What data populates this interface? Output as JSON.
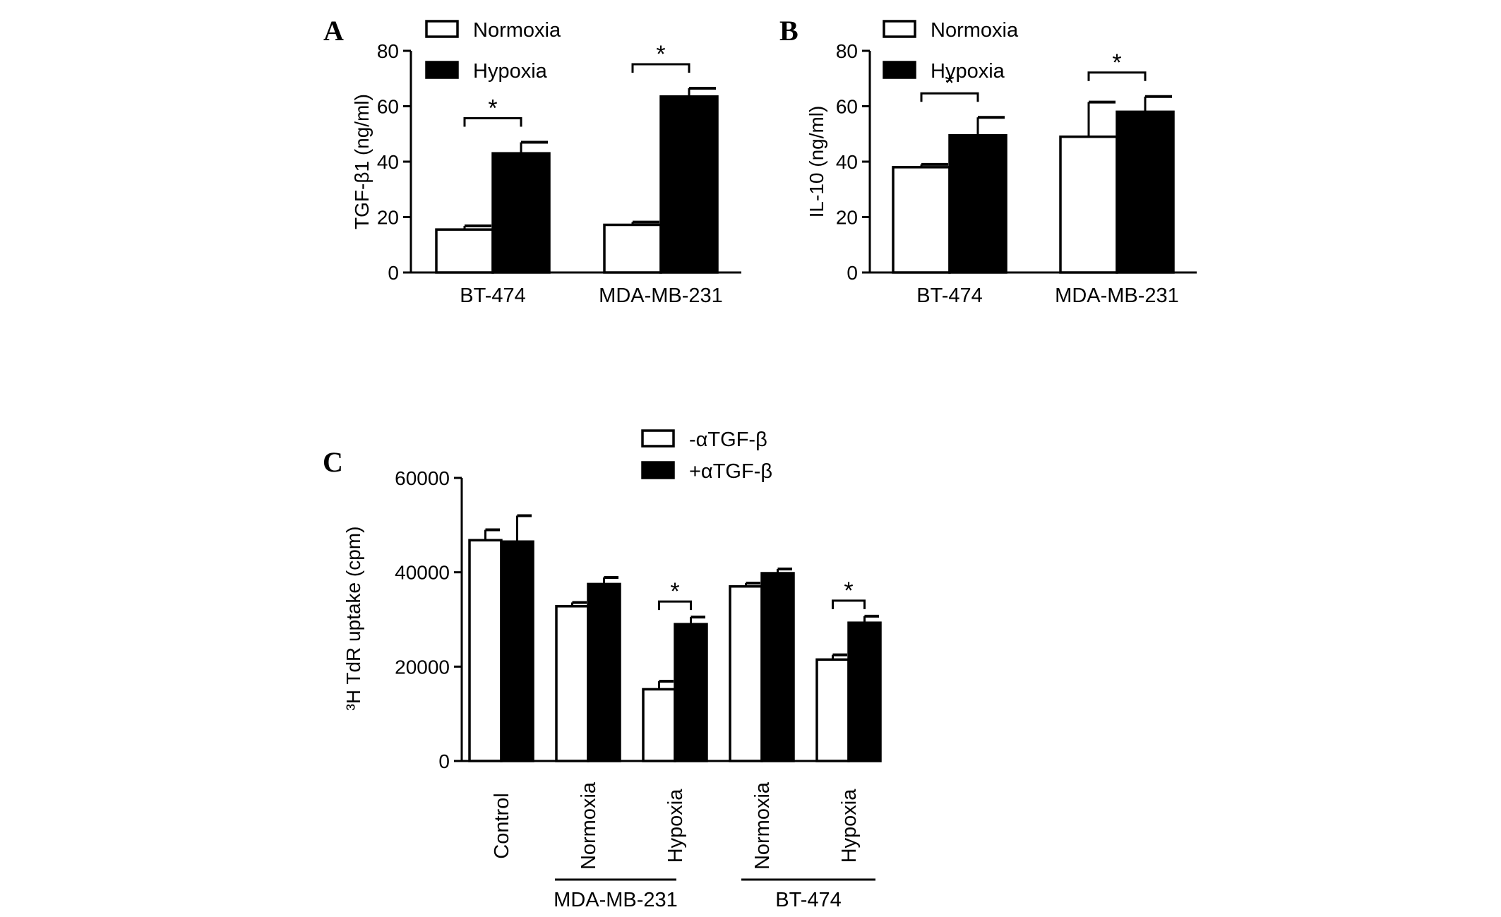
{
  "chart_data": [
    {
      "panel": "A",
      "type": "bar",
      "categories": [
        "BT-474",
        "MDA-MB-231"
      ],
      "series": [
        {
          "name": "Normoxia",
          "values": [
            15.5,
            17.2
          ],
          "errors": [
            1.3,
            1.0
          ],
          "fill": "#ffffff"
        },
        {
          "name": "Hypoxia",
          "values": [
            43.0,
            63.5
          ],
          "errors": [
            4.0,
            3.0
          ],
          "fill": "#000000"
        }
      ],
      "ylabel": "TGF-β1 (ng/ml)",
      "ylim": [
        0,
        80
      ],
      "yticks": [
        0,
        20,
        40,
        60,
        80
      ],
      "significance": [
        "*",
        "*"
      ],
      "legend_position": "top"
    },
    {
      "panel": "B",
      "type": "bar",
      "categories": [
        "BT-474",
        "MDA-MB-231"
      ],
      "series": [
        {
          "name": "Normoxia",
          "values": [
            38.0,
            49.0
          ],
          "errors": [
            1.0,
            12.5
          ],
          "fill": "#ffffff"
        },
        {
          "name": "Hypoxia",
          "values": [
            49.5,
            58.0
          ],
          "errors": [
            6.5,
            5.5
          ],
          "fill": "#000000"
        }
      ],
      "ylabel": "IL-10 (ng/ml)",
      "ylim": [
        0,
        80
      ],
      "yticks": [
        0,
        20,
        40,
        60,
        80
      ],
      "significance": [
        "*",
        "*"
      ],
      "legend_position": "top"
    },
    {
      "panel": "C",
      "type": "bar",
      "categories": [
        "Control",
        "Normoxia",
        "Hypoxia",
        "Normoxia",
        "Hypoxia"
      ],
      "groups": [
        {
          "label": "MDA-MB-231",
          "categories": [
            1,
            2
          ]
        },
        {
          "label": "BT-474",
          "categories": [
            3,
            4
          ]
        }
      ],
      "series": [
        {
          "name": "-αTGF-β",
          "values": [
            46800,
            32800,
            15200,
            37000,
            21500
          ],
          "errors": [
            2200,
            800,
            1700,
            700,
            1000
          ],
          "fill": "#ffffff"
        },
        {
          "name": "+αTGF-β",
          "values": [
            46500,
            37500,
            29000,
            39800,
            29300
          ],
          "errors": [
            5500,
            1400,
            1500,
            900,
            1400
          ],
          "fill": "#000000"
        }
      ],
      "ylabel": "³H TdR uptake (cpm)",
      "ylim": [
        0,
        60000
      ],
      "yticks": [
        0,
        20000,
        40000,
        60000
      ],
      "significance": [
        "",
        "",
        "*",
        "",
        "*"
      ],
      "legend_position": "top"
    }
  ]
}
